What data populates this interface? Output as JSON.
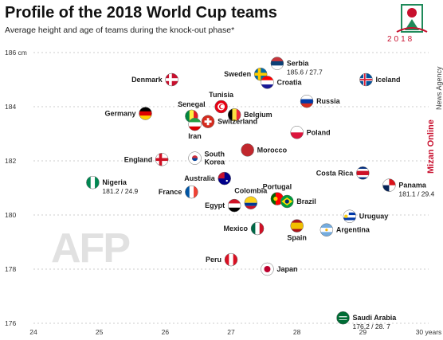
{
  "header": {
    "title": "Profile of the 2018 World Cup teams",
    "subtitle": "Average height and age of teams during the knock-out phase*"
  },
  "branding": {
    "year": "2018",
    "side_text_red": "Mizan Online",
    "side_text_dark": "News Agency",
    "watermark": "AFP",
    "accent_color": "#c8102e"
  },
  "chart_data": {
    "type": "scatter",
    "title": "Profile of the 2018 World Cup teams",
    "subtitle": "Average height and age of teams during the knock-out phase*",
    "xlabel": "years",
    "ylabel": "cm",
    "xlim": [
      24,
      30
    ],
    "ylim": [
      176,
      186
    ],
    "x_ticks": [
      "24",
      "25",
      "26",
      "27",
      "28",
      "29",
      "30 years"
    ],
    "y_ticks": [
      "176",
      "178",
      "180",
      "182",
      "184",
      "186 cm"
    ],
    "grid": "y-dashed",
    "points": [
      {
        "name": "Serbia",
        "label": "Serbia",
        "sub": "185.6 / 27.7",
        "x": 27.7,
        "y": 185.6,
        "icon": "flag-serbia",
        "label_pos": "right"
      },
      {
        "name": "Sweden",
        "label": "Sweden",
        "sub": "",
        "x": 27.45,
        "y": 185.2,
        "icon": "flag-sweden",
        "label_pos": "left"
      },
      {
        "name": "Croatia",
        "label": "Croatia",
        "sub": "",
        "x": 27.55,
        "y": 184.9,
        "icon": "flag-croatia",
        "label_pos": "right"
      },
      {
        "name": "Denmark",
        "label": "Denmark",
        "sub": "",
        "x": 26.1,
        "y": 185.0,
        "icon": "flag-denmark",
        "label_pos": "left"
      },
      {
        "name": "Iceland",
        "label": "Iceland",
        "sub": "",
        "x": 29.05,
        "y": 185.0,
        "icon": "flag-iceland",
        "label_pos": "right"
      },
      {
        "name": "Russia",
        "label": "Russia",
        "sub": "",
        "x": 28.15,
        "y": 184.2,
        "icon": "flag-russia",
        "label_pos": "right"
      },
      {
        "name": "Tunisia",
        "label": "Tunisia",
        "sub": "",
        "x": 26.85,
        "y": 184.0,
        "icon": "flag-tunisia",
        "label_pos": "top"
      },
      {
        "name": "Senegal",
        "label": "Senegal",
        "sub": "",
        "x": 26.4,
        "y": 183.65,
        "icon": "flag-senegal",
        "label_pos": "top"
      },
      {
        "name": "Belgium",
        "label": "Belgium",
        "sub": "",
        "x": 27.05,
        "y": 183.7,
        "icon": "flag-belgium",
        "label_pos": "right"
      },
      {
        "name": "Germany",
        "label": "Germany",
        "sub": "",
        "x": 25.7,
        "y": 183.75,
        "icon": "flag-germany",
        "label_pos": "left"
      },
      {
        "name": "Switzerland",
        "label": "Switzerland",
        "sub": "",
        "x": 26.65,
        "y": 183.45,
        "icon": "flag-switzerland",
        "label_pos": "right"
      },
      {
        "name": "Iran",
        "label": "Iran",
        "sub": "",
        "x": 26.45,
        "y": 183.35,
        "icon": "flag-iran",
        "label_pos": "bottom"
      },
      {
        "name": "Poland",
        "label": "Poland",
        "sub": "",
        "x": 28.0,
        "y": 183.05,
        "icon": "flag-poland",
        "label_pos": "right"
      },
      {
        "name": "Morocco",
        "label": "Morocco",
        "sub": "",
        "x": 27.25,
        "y": 182.4,
        "icon": "flag-morocco",
        "label_pos": "right"
      },
      {
        "name": "South Korea",
        "label": "South\nKorea",
        "sub": "",
        "x": 26.45,
        "y": 182.1,
        "icon": "flag-south-korea",
        "label_pos": "right"
      },
      {
        "name": "England",
        "label": "England",
        "sub": "",
        "x": 25.95,
        "y": 182.05,
        "icon": "flag-england",
        "label_pos": "left"
      },
      {
        "name": "Costa Rica",
        "label": "Costa Rica",
        "sub": "",
        "x": 29.0,
        "y": 181.55,
        "icon": "flag-costa-rica",
        "label_pos": "left"
      },
      {
        "name": "Australia",
        "label": "Australia",
        "sub": "",
        "x": 26.9,
        "y": 181.35,
        "icon": "flag-australia",
        "label_pos": "left"
      },
      {
        "name": "Nigeria",
        "label": "Nigeria",
        "sub": "181.2 / 24.9",
        "x": 24.9,
        "y": 181.2,
        "icon": "flag-nigeria",
        "label_pos": "right"
      },
      {
        "name": "Panama",
        "label": "Panama",
        "sub": "181.1 / 29.4",
        "x": 29.4,
        "y": 181.1,
        "icon": "flag-panama",
        "label_pos": "right"
      },
      {
        "name": "Portugal",
        "label": "Portugal",
        "sub": "",
        "x": 27.7,
        "y": 180.6,
        "icon": "flag-portugal",
        "label_pos": "top"
      },
      {
        "name": "Brazil",
        "label": "Brazil",
        "sub": "",
        "x": 27.85,
        "y": 180.5,
        "icon": "flag-brazil",
        "label_pos": "right"
      },
      {
        "name": "Colombia",
        "label": "Colombia",
        "sub": "",
        "x": 27.3,
        "y": 180.45,
        "icon": "flag-colombia",
        "label_pos": "top"
      },
      {
        "name": "France",
        "label": "France",
        "sub": "",
        "x": 26.4,
        "y": 180.85,
        "icon": "flag-france",
        "label_pos": "left"
      },
      {
        "name": "Egypt",
        "label": "Egypt",
        "sub": "",
        "x": 27.05,
        "y": 180.35,
        "icon": "flag-egypt",
        "label_pos": "left"
      },
      {
        "name": "Uruguay",
        "label": "Uruguay",
        "sub": "",
        "x": 28.8,
        "y": 179.95,
        "icon": "flag-uruguay",
        "label_pos": "right"
      },
      {
        "name": "Mexico",
        "label": "Mexico",
        "sub": "",
        "x": 27.4,
        "y": 179.5,
        "icon": "flag-mexico",
        "label_pos": "left"
      },
      {
        "name": "Spain",
        "label": "Spain",
        "sub": "",
        "x": 28.0,
        "y": 179.6,
        "icon": "flag-spain",
        "label_pos": "bottom"
      },
      {
        "name": "Argentina",
        "label": "Argentina",
        "sub": "",
        "x": 28.45,
        "y": 179.45,
        "icon": "flag-argentina",
        "label_pos": "right"
      },
      {
        "name": "Peru",
        "label": "Peru",
        "sub": "",
        "x": 27.0,
        "y": 178.35,
        "icon": "flag-peru",
        "label_pos": "left"
      },
      {
        "name": "Japan",
        "label": "Japan",
        "sub": "",
        "x": 27.55,
        "y": 178.0,
        "icon": "flag-japan",
        "label_pos": "right"
      },
      {
        "name": "Saudi Arabia",
        "label": "Saudi Arabia",
        "sub": "176.2 / 28. 7",
        "x": 28.7,
        "y": 176.2,
        "icon": "flag-saudi-arabia",
        "label_pos": "right"
      }
    ]
  }
}
